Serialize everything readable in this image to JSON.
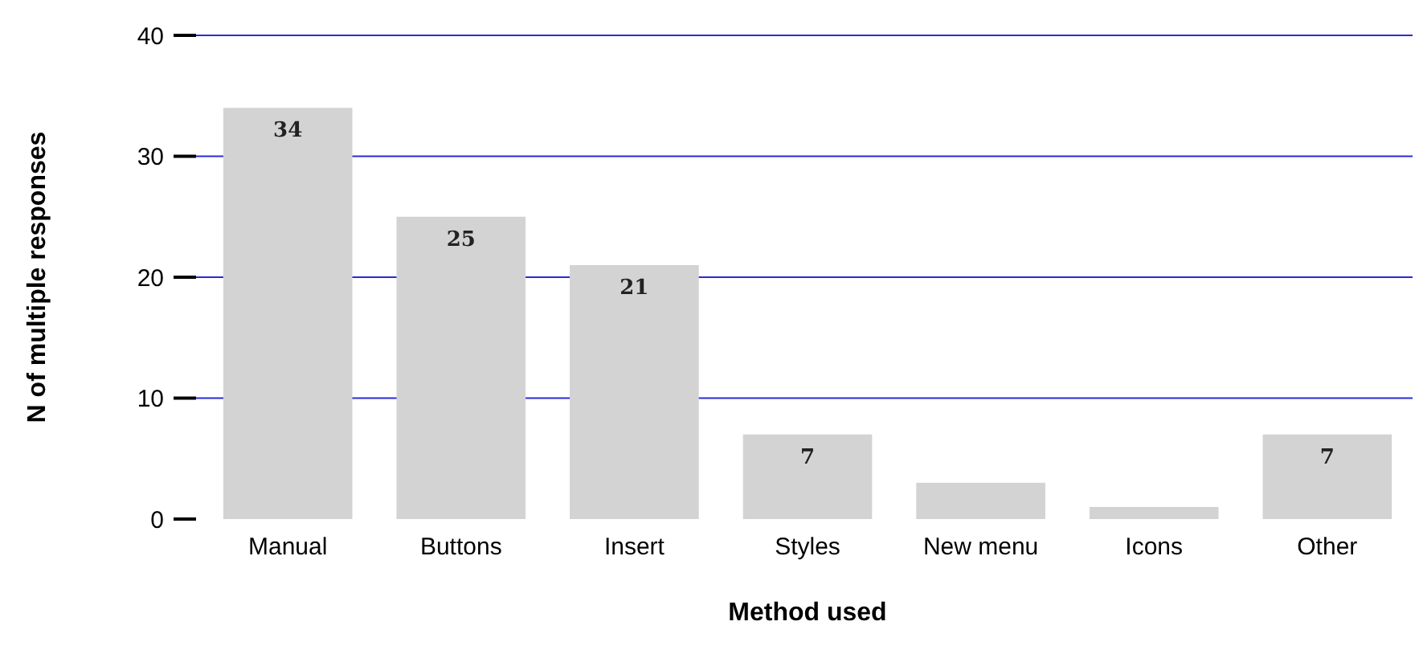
{
  "chart_data": {
    "type": "bar",
    "xlabel": "Method used",
    "ylabel": "N of multiple responses",
    "categories": [
      "Manual",
      "Buttons",
      "Insert",
      "Styles",
      "New menu",
      "Icons",
      "Other"
    ],
    "values": [
      34,
      25,
      21,
      7,
      3,
      1,
      7
    ],
    "value_labels": [
      "34",
      "25",
      "21",
      "7",
      null,
      null,
      "7"
    ],
    "color": "#d3d3d3",
    "ylim": [
      0,
      40
    ],
    "yticks": [
      0,
      10,
      20,
      30,
      40
    ],
    "grid": "y"
  }
}
